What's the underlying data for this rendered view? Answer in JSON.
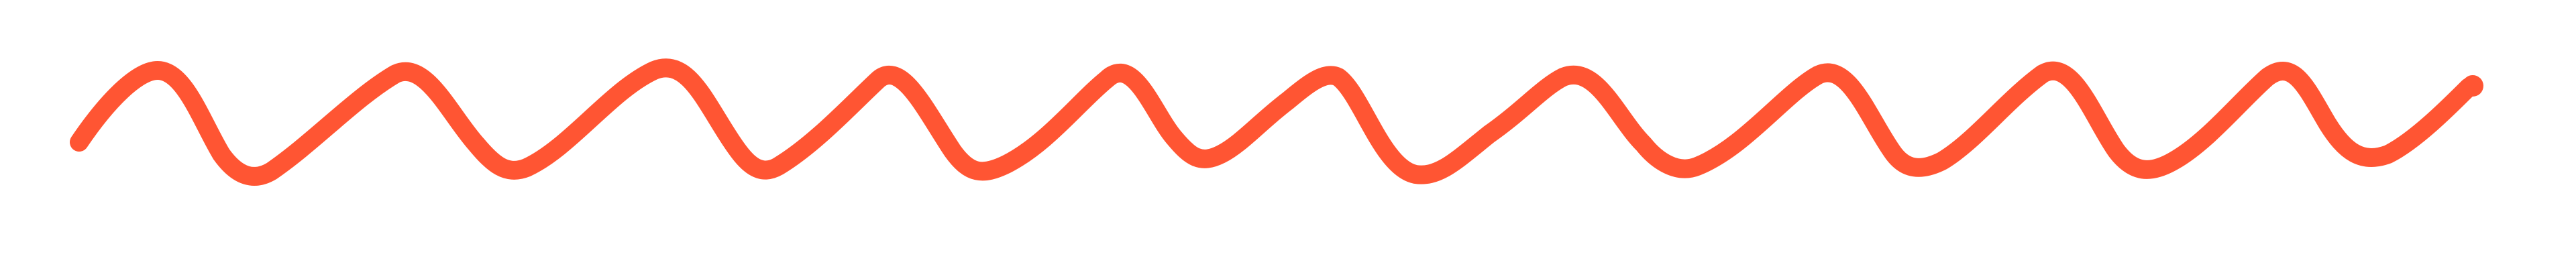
{
  "canvas": {
    "background": "#ffffff"
  },
  "squiggle": {
    "semantic": "hand-drawn-wavy-line",
    "color": "#ff5533",
    "peaks": 10
  }
}
